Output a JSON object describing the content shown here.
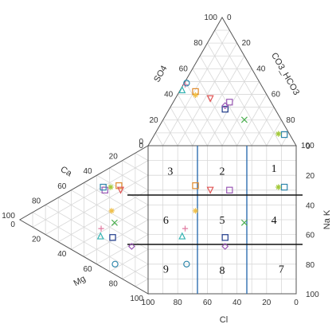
{
  "chart_data": {
    "type": "scatter",
    "diagram": "durov",
    "axes": {
      "cation_triangle": {
        "apex_top": "Ca",
        "apex_bottom": "Mg",
        "ticks_a": [
          "100",
          "80",
          "60",
          "40",
          "20",
          "0"
        ],
        "ticks_b": [
          "0",
          "20",
          "40",
          "60",
          "80",
          "100"
        ],
        "label_ca": "Ca",
        "label_mg": "Mg"
      },
      "anion_triangle": {
        "label_left": "SO4",
        "label_right": "CO3_HCO3",
        "ticks_left": [
          "100",
          "80",
          "60",
          "40",
          "20",
          "0"
        ],
        "ticks_right": [
          "0",
          "20",
          "40",
          "60",
          "80",
          "100"
        ]
      },
      "square_x": {
        "label": "Cl",
        "ticks": [
          "100",
          "80",
          "60",
          "40",
          "20",
          "0"
        ]
      },
      "square_y": {
        "label": "Na K",
        "ticks": [
          "0",
          "20",
          "40",
          "60",
          "80",
          "100"
        ]
      }
    },
    "zones": [
      "1",
      "2",
      "3",
      "4",
      "5",
      "6",
      "7",
      "8",
      "9"
    ],
    "samples": [
      {
        "shape": "square",
        "color": "#9b59b6",
        "cl": 45,
        "nak": 30,
        "ca": 55,
        "so4": 55
      },
      {
        "shape": "square",
        "color": "#2e86ab",
        "cl": 8,
        "nak": 28,
        "ca": 60,
        "so4": 8
      },
      {
        "shape": "square",
        "color": "#e08a2c",
        "cl": 68,
        "nak": 27,
        "ca": 40,
        "so4": 70
      },
      {
        "shape": "square",
        "color": "#1e3a8a",
        "cl": 48,
        "nak": 62,
        "ca": 38,
        "so4": 45
      },
      {
        "shape": "triangle-down",
        "color": "#e05555",
        "cl": 58,
        "nak": 30,
        "ca": 35,
        "so4": 60
      },
      {
        "shape": "x",
        "color": "#4caf50",
        "cl": 35,
        "nak": 52,
        "ca": 30,
        "so4": 30
      },
      {
        "shape": "asterisk",
        "color": "#a3c93a",
        "cl": 12,
        "nak": 28,
        "ca": 50,
        "so4": 10
      },
      {
        "shape": "plus",
        "color": "#e07aa0",
        "cl": 75,
        "nak": 56,
        "ca": 45,
        "so4": 80
      },
      {
        "shape": "triangle",
        "color": "#36b3b3",
        "cl": 77,
        "nak": 61,
        "ca": 50,
        "so4": 85
      },
      {
        "shape": "circle",
        "color": "#2e86ab",
        "cl": 74,
        "nak": 80,
        "ca": 55,
        "so4": 82
      },
      {
        "shape": "diamond",
        "color": "#9b59b6",
        "cl": 48,
        "nak": 68,
        "ca": 20,
        "so4": 50
      },
      {
        "shape": "star",
        "color": "#f0c04a",
        "cl": 68,
        "nak": 44,
        "ca": 35,
        "so4": 65
      }
    ]
  }
}
